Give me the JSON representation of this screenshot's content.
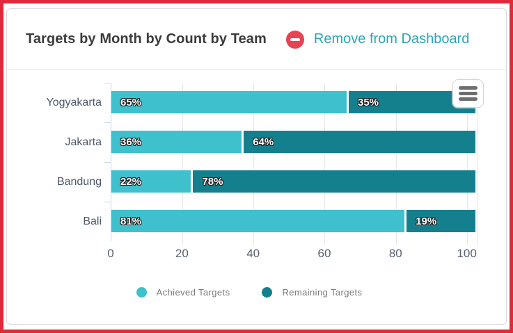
{
  "header": {
    "title": "Targets by Month by Count by Team",
    "remove_button": {
      "label": "Remove from Dashboard",
      "icon": "minus-circle",
      "icon_color": "#e84352",
      "text_color": "#2aa6b5"
    }
  },
  "chart_data": {
    "type": "bar",
    "orientation": "horizontal",
    "stacked": true,
    "title": "Targets by Month by Count by Team",
    "categories": [
      "Yogyakarta",
      "Jakarta",
      "Bandung",
      "Bali"
    ],
    "series": [
      {
        "name": "Achieved Targets",
        "color": "#3fc0cd",
        "values": [
          65,
          36,
          22,
          81
        ],
        "labels": [
          "65%",
          "36%",
          "22%",
          "81%"
        ]
      },
      {
        "name": "Remaining Targets",
        "color": "#15808d",
        "values": [
          35,
          64,
          78,
          19
        ],
        "labels": [
          "35%",
          "64%",
          "78%",
          "19%"
        ]
      }
    ],
    "x_ticks": [
      0,
      20,
      40,
      60,
      80,
      100
    ],
    "xlim": [
      0,
      103
    ],
    "grid": true,
    "legend_position": "bottom"
  },
  "menu": {
    "icon": "hamburger-menu"
  },
  "frame": {
    "border_color": "#e0293b"
  }
}
